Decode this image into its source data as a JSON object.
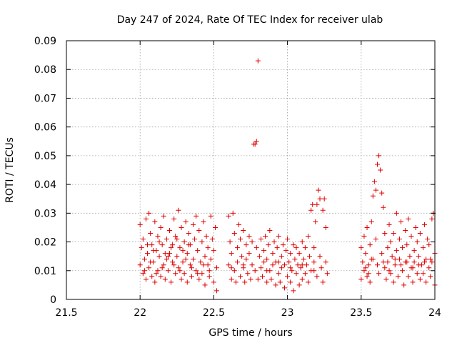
{
  "chart_data": {
    "type": "scatter",
    "title": "Day 247 of 2024, Rate Of TEC Index for receiver ulab",
    "xlabel": "GPS time / hours",
    "ylabel": "ROTI / TECUs",
    "xlim": [
      21.5,
      24
    ],
    "ylim": [
      0,
      0.09
    ],
    "xticks": [
      21.5,
      22,
      22.5,
      23,
      23.5,
      24
    ],
    "xtick_labels": [
      "21.5",
      "22",
      "22.5",
      "23",
      "23.5",
      "24"
    ],
    "yticks": [
      0,
      0.01,
      0.02,
      0.03,
      0.04,
      0.05,
      0.06,
      0.07,
      0.08,
      0.09
    ],
    "ytick_labels": [
      "0",
      "0.01",
      "0.02",
      "0.03",
      "0.04",
      "0.05",
      "0.06",
      "0.07",
      "0.08",
      "0.09"
    ],
    "grid": true,
    "marker": "+",
    "color": "#e00000",
    "series": [
      {
        "name": "ROTI",
        "points": [
          [
            22.0,
            0.012
          ],
          [
            22.0,
            0.026
          ],
          [
            22.01,
            0.018
          ],
          [
            22.02,
            0.009
          ],
          [
            22.02,
            0.021
          ],
          [
            22.03,
            0.014
          ],
          [
            22.04,
            0.028
          ],
          [
            22.04,
            0.007
          ],
          [
            22.05,
            0.016
          ],
          [
            22.06,
            0.03
          ],
          [
            22.06,
            0.011
          ],
          [
            22.07,
            0.023
          ],
          [
            22.08,
            0.008
          ],
          [
            22.08,
            0.019
          ],
          [
            22.09,
            0.013
          ],
          [
            22.1,
            0.027
          ],
          [
            22.1,
            0.006
          ],
          [
            22.11,
            0.017
          ],
          [
            22.12,
            0.022
          ],
          [
            22.12,
            0.01
          ],
          [
            22.13,
            0.015
          ],
          [
            22.14,
            0.025
          ],
          [
            22.14,
            0.008
          ],
          [
            22.15,
            0.019
          ],
          [
            22.16,
            0.012
          ],
          [
            22.16,
            0.029
          ],
          [
            22.17,
            0.007
          ],
          [
            22.18,
            0.021
          ],
          [
            22.18,
            0.014
          ],
          [
            22.19,
            0.01
          ],
          [
            22.2,
            0.024
          ],
          [
            22.2,
            0.016
          ],
          [
            22.21,
            0.006
          ],
          [
            22.22,
            0.019
          ],
          [
            22.22,
            0.013
          ],
          [
            22.23,
            0.028
          ],
          [
            22.24,
            0.009
          ],
          [
            22.24,
            0.022
          ],
          [
            22.25,
            0.015
          ],
          [
            22.26,
            0.031
          ],
          [
            22.26,
            0.011
          ],
          [
            22.27,
            0.018
          ],
          [
            22.28,
            0.007
          ],
          [
            22.28,
            0.025
          ],
          [
            22.29,
            0.013
          ],
          [
            22.3,
            0.02
          ],
          [
            22.3,
            0.009
          ],
          [
            22.31,
            0.027
          ],
          [
            22.32,
            0.016
          ],
          [
            22.32,
            0.006
          ],
          [
            22.33,
            0.023
          ],
          [
            22.34,
            0.012
          ],
          [
            22.34,
            0.019
          ],
          [
            22.35,
            0.008
          ],
          [
            22.36,
            0.026
          ],
          [
            22.36,
            0.014
          ],
          [
            22.37,
            0.021
          ],
          [
            22.38,
            0.01
          ],
          [
            22.38,
            0.029
          ],
          [
            22.39,
            0.017
          ],
          [
            22.4,
            0.007
          ],
          [
            22.4,
            0.024
          ],
          [
            22.41,
            0.013
          ],
          [
            22.42,
            0.02
          ],
          [
            22.42,
            0.009
          ],
          [
            22.43,
            0.027
          ],
          [
            22.44,
            0.015
          ],
          [
            22.44,
            0.005
          ],
          [
            22.45,
            0.022
          ],
          [
            22.46,
            0.012
          ],
          [
            22.46,
            0.018
          ],
          [
            22.47,
            0.008
          ],
          [
            22.48,
            0.029
          ],
          [
            22.48,
            0.014
          ],
          [
            22.49,
            0.021
          ],
          [
            22.5,
            0.006
          ],
          [
            22.5,
            0.017
          ],
          [
            22.51,
            0.025
          ],
          [
            22.52,
            0.003
          ],
          [
            22.52,
            0.011
          ],
          [
            22.03,
            0.01
          ],
          [
            22.07,
            0.013
          ],
          [
            22.11,
            0.009
          ],
          [
            22.15,
            0.011
          ],
          [
            22.19,
            0.015
          ],
          [
            22.23,
            0.012
          ],
          [
            22.27,
            0.01
          ],
          [
            22.31,
            0.014
          ],
          [
            22.35,
            0.011
          ],
          [
            22.39,
            0.009
          ],
          [
            22.43,
            0.012
          ],
          [
            22.47,
            0.01
          ],
          [
            22.05,
            0.019
          ],
          [
            22.09,
            0.017
          ],
          [
            22.13,
            0.02
          ],
          [
            22.17,
            0.016
          ],
          [
            22.21,
            0.018
          ],
          [
            22.25,
            0.021
          ],
          [
            22.29,
            0.017
          ],
          [
            22.33,
            0.019
          ],
          [
            22.6,
            0.029
          ],
          [
            22.6,
            0.012
          ],
          [
            22.61,
            0.02
          ],
          [
            22.62,
            0.007
          ],
          [
            22.62,
            0.016
          ],
          [
            22.63,
            0.03
          ],
          [
            22.64,
            0.01
          ],
          [
            22.64,
            0.023
          ],
          [
            22.65,
            0.006
          ],
          [
            22.66,
            0.018
          ],
          [
            22.66,
            0.013
          ],
          [
            22.67,
            0.026
          ],
          [
            22.68,
            0.008
          ],
          [
            22.68,
            0.021
          ],
          [
            22.69,
            0.015
          ],
          [
            22.7,
            0.011
          ],
          [
            22.7,
            0.024
          ],
          [
            22.71,
            0.006
          ],
          [
            22.72,
            0.019
          ],
          [
            22.72,
            0.014
          ],
          [
            22.73,
            0.009
          ],
          [
            22.74,
            0.022
          ],
          [
            22.74,
            0.016
          ],
          [
            22.75,
            0.007
          ],
          [
            22.76,
            0.02
          ],
          [
            22.76,
            0.012
          ],
          [
            22.77,
            0.054
          ],
          [
            22.78,
            0.054
          ],
          [
            22.79,
            0.055
          ],
          [
            22.8,
            0.083
          ],
          [
            22.78,
            0.01
          ],
          [
            22.79,
            0.018
          ],
          [
            22.8,
            0.007
          ],
          [
            22.81,
            0.015
          ],
          [
            22.82,
            0.021
          ],
          [
            22.82,
            0.011
          ],
          [
            22.83,
            0.008
          ],
          [
            22.84,
            0.017
          ],
          [
            22.84,
            0.013
          ],
          [
            22.85,
            0.022
          ],
          [
            22.86,
            0.006
          ],
          [
            22.86,
            0.014
          ],
          [
            22.87,
            0.019
          ],
          [
            22.88,
            0.01
          ],
          [
            22.88,
            0.024
          ],
          [
            22.89,
            0.007
          ],
          [
            22.9,
            0.016
          ],
          [
            22.9,
            0.012
          ],
          [
            22.91,
            0.02
          ],
          [
            22.92,
            0.005
          ],
          [
            22.92,
            0.013
          ],
          [
            22.93,
            0.018
          ],
          [
            22.94,
            0.009
          ],
          [
            22.94,
            0.022
          ],
          [
            22.95,
            0.006
          ],
          [
            22.96,
            0.015
          ],
          [
            22.96,
            0.011
          ],
          [
            22.97,
            0.019
          ],
          [
            22.98,
            0.004
          ],
          [
            22.98,
            0.012
          ],
          [
            22.99,
            0.017
          ],
          [
            23.0,
            0.008
          ],
          [
            23.0,
            0.021
          ],
          [
            23.01,
            0.013
          ],
          [
            23.02,
            0.006
          ],
          [
            23.02,
            0.016
          ],
          [
            23.03,
            0.01
          ],
          [
            23.04,
            0.019
          ],
          [
            23.04,
            0.003
          ],
          [
            23.05,
            0.014
          ],
          [
            23.06,
            0.009
          ],
          [
            23.06,
            0.018
          ],
          [
            23.07,
            0.012
          ],
          [
            23.08,
            0.005
          ],
          [
            23.08,
            0.016
          ],
          [
            23.09,
            0.011
          ],
          [
            23.1,
            0.02
          ],
          [
            23.1,
            0.007
          ],
          [
            23.11,
            0.014
          ],
          [
            23.12,
            0.009
          ],
          [
            23.12,
            0.018
          ],
          [
            23.13,
            0.012
          ],
          [
            23.14,
            0.006
          ],
          [
            23.14,
            0.022
          ],
          [
            23.15,
            0.015
          ],
          [
            23.16,
            0.031
          ],
          [
            23.16,
            0.01
          ],
          [
            23.17,
            0.033
          ],
          [
            23.18,
            0.018
          ],
          [
            23.18,
            0.013
          ],
          [
            23.19,
            0.027
          ],
          [
            23.2,
            0.033
          ],
          [
            23.2,
            0.008
          ],
          [
            23.21,
            0.038
          ],
          [
            23.22,
            0.035
          ],
          [
            23.22,
            0.015
          ],
          [
            23.23,
            0.011
          ],
          [
            23.24,
            0.031
          ],
          [
            23.24,
            0.006
          ],
          [
            23.25,
            0.035
          ],
          [
            23.26,
            0.025
          ],
          [
            23.26,
            0.013
          ],
          [
            23.27,
            0.009
          ],
          [
            22.62,
            0.011
          ],
          [
            22.7,
            0.012
          ],
          [
            22.86,
            0.01
          ],
          [
            22.94,
            0.013
          ],
          [
            23.02,
            0.011
          ],
          [
            23.1,
            0.012
          ],
          [
            23.18,
            0.01
          ],
          [
            23.5,
            0.018
          ],
          [
            23.5,
            0.007
          ],
          [
            23.51,
            0.013
          ],
          [
            23.52,
            0.022
          ],
          [
            23.52,
            0.01
          ],
          [
            23.53,
            0.016
          ],
          [
            23.54,
            0.008
          ],
          [
            23.54,
            0.025
          ],
          [
            23.55,
            0.012
          ],
          [
            23.56,
            0.019
          ],
          [
            23.56,
            0.006
          ],
          [
            23.57,
            0.027
          ],
          [
            23.58,
            0.014
          ],
          [
            23.58,
            0.036
          ],
          [
            23.59,
            0.041
          ],
          [
            23.6,
            0.038
          ],
          [
            23.6,
            0.021
          ],
          [
            23.61,
            0.047
          ],
          [
            23.62,
            0.05
          ],
          [
            23.62,
            0.009
          ],
          [
            23.63,
            0.045
          ],
          [
            23.64,
            0.037
          ],
          [
            23.64,
            0.016
          ],
          [
            23.65,
            0.032
          ],
          [
            23.66,
            0.011
          ],
          [
            23.66,
            0.023
          ],
          [
            23.67,
            0.007
          ],
          [
            23.68,
            0.018
          ],
          [
            23.68,
            0.013
          ],
          [
            23.69,
            0.026
          ],
          [
            23.7,
            0.009
          ],
          [
            23.7,
            0.02
          ],
          [
            23.71,
            0.015
          ],
          [
            23.72,
            0.006
          ],
          [
            23.72,
            0.023
          ],
          [
            23.73,
            0.012
          ],
          [
            23.74,
            0.03
          ],
          [
            23.74,
            0.017
          ],
          [
            23.75,
            0.008
          ],
          [
            23.76,
            0.021
          ],
          [
            23.76,
            0.014
          ],
          [
            23.77,
            0.027
          ],
          [
            23.78,
            0.01
          ],
          [
            23.78,
            0.018
          ],
          [
            23.79,
            0.005
          ],
          [
            23.8,
            0.024
          ],
          [
            23.8,
            0.013
          ],
          [
            23.81,
            0.019
          ],
          [
            23.82,
            0.008
          ],
          [
            23.82,
            0.028
          ],
          [
            23.83,
            0.015
          ],
          [
            23.84,
            0.011
          ],
          [
            23.84,
            0.022
          ],
          [
            23.85,
            0.006
          ],
          [
            23.86,
            0.017
          ],
          [
            23.86,
            0.013
          ],
          [
            23.87,
            0.025
          ],
          [
            23.88,
            0.009
          ],
          [
            23.88,
            0.02
          ],
          [
            23.89,
            0.015
          ],
          [
            23.9,
            0.007
          ],
          [
            23.9,
            0.023
          ],
          [
            23.91,
            0.012
          ],
          [
            23.92,
            0.018
          ],
          [
            23.92,
            0.009
          ],
          [
            23.93,
            0.026
          ],
          [
            23.94,
            0.014
          ],
          [
            23.94,
            0.006
          ],
          [
            23.95,
            0.021
          ],
          [
            23.96,
            0.011
          ],
          [
            23.96,
            0.019
          ],
          [
            23.97,
            0.008
          ],
          [
            23.98,
            0.028
          ],
          [
            23.98,
            0.013
          ],
          [
            23.99,
            0.03
          ],
          [
            24.0,
            0.005
          ],
          [
            24.0,
            0.016
          ],
          [
            23.53,
            0.011
          ],
          [
            23.61,
            0.012
          ],
          [
            23.69,
            0.01
          ],
          [
            23.77,
            0.012
          ],
          [
            23.85,
            0.011
          ],
          [
            23.93,
            0.013
          ],
          [
            23.57,
            0.014
          ],
          [
            23.65,
            0.013
          ],
          [
            23.73,
            0.014
          ],
          [
            23.81,
            0.013
          ],
          [
            23.89,
            0.012
          ],
          [
            23.97,
            0.014
          ],
          [
            23.55,
            0.009
          ]
        ]
      }
    ]
  }
}
